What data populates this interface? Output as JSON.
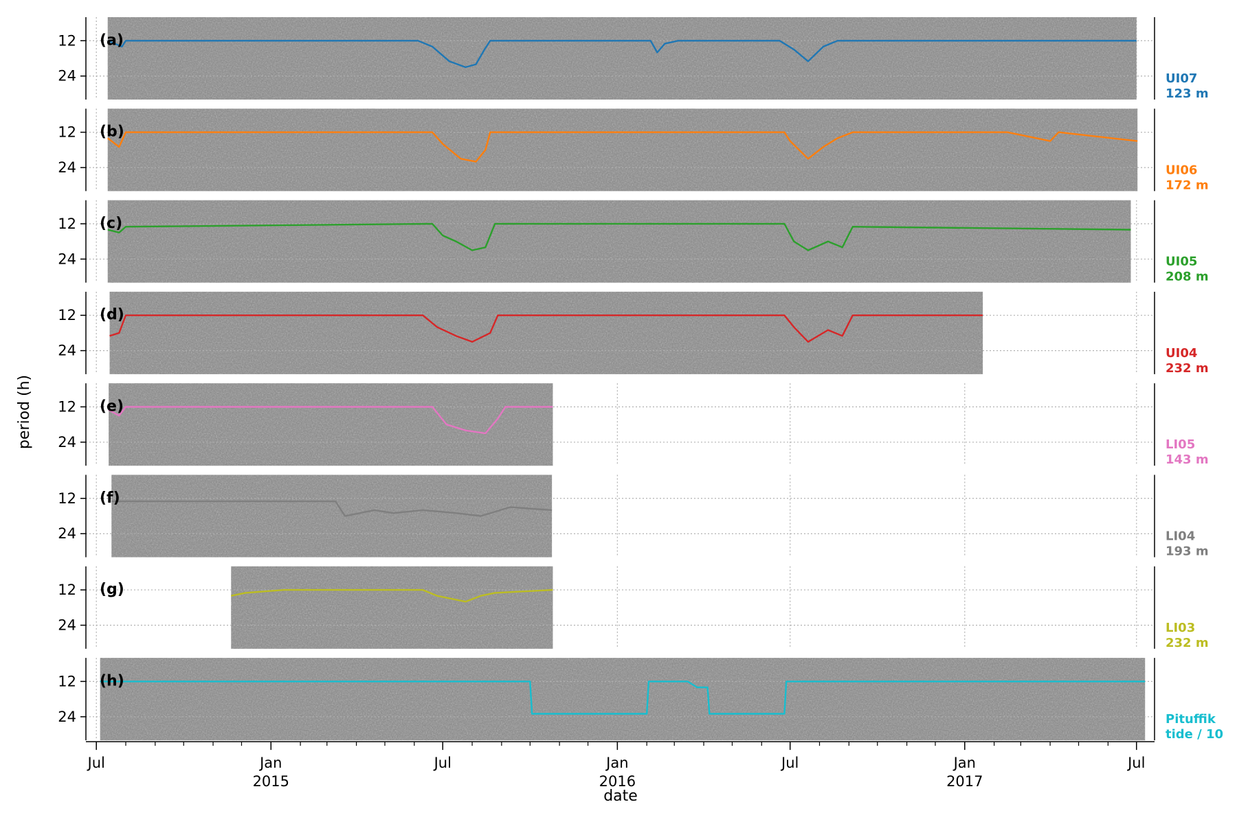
{
  "chart_data": {
    "type": "line",
    "xlabel": "date",
    "ylabel": "period (h)",
    "x_tick_labels": [
      {
        "date": "2014-07-01",
        "text": "Jul"
      },
      {
        "date": "2015-01-01",
        "text": "Jan",
        "year": "2015"
      },
      {
        "date": "2015-07-01",
        "text": "Jul"
      },
      {
        "date": "2016-01-01",
        "text": "Jan",
        "year": "2016"
      },
      {
        "date": "2016-07-01",
        "text": "Jul"
      },
      {
        "date": "2017-01-01",
        "text": "Jan",
        "year": "2017"
      },
      {
        "date": "2017-07-01",
        "text": "Jul"
      }
    ],
    "xlim": [
      "2014-06-20",
      "2017-07-20"
    ],
    "ylim": [
      32,
      4
    ],
    "yticks": [
      12,
      24
    ],
    "grid": true,
    "panels": [
      {
        "panel": "(a)",
        "station": "UI07",
        "depth": "123 m",
        "color": "#1f77b4",
        "start": "2014-07-13",
        "end": "2017-07-01",
        "points": [
          [
            "2014-07-13",
            12
          ],
          [
            "2014-07-28",
            14
          ],
          [
            "2014-08-01",
            12
          ],
          [
            "2015-06-05",
            12
          ],
          [
            "2015-06-20",
            14
          ],
          [
            "2015-07-08",
            19
          ],
          [
            "2015-07-25",
            21
          ],
          [
            "2015-08-05",
            20
          ],
          [
            "2015-08-14",
            15
          ],
          [
            "2015-08-20",
            12
          ],
          [
            "2016-02-05",
            12
          ],
          [
            "2016-02-12",
            16
          ],
          [
            "2016-02-20",
            13
          ],
          [
            "2016-03-05",
            12
          ],
          [
            "2016-06-20",
            12
          ],
          [
            "2016-07-05",
            15
          ],
          [
            "2016-07-20",
            19
          ],
          [
            "2016-08-05",
            14
          ],
          [
            "2016-08-20",
            12
          ],
          [
            "2017-07-01",
            12
          ]
        ]
      },
      {
        "panel": "(b)",
        "station": "UI06",
        "depth": "172 m",
        "color": "#ff7f0e",
        "start": "2014-07-13",
        "end": "2017-07-02",
        "points": [
          [
            "2014-07-13",
            14
          ],
          [
            "2014-07-25",
            17
          ],
          [
            "2014-08-01",
            12
          ],
          [
            "2015-06-20",
            12
          ],
          [
            "2015-07-01",
            16
          ],
          [
            "2015-07-20",
            21
          ],
          [
            "2015-08-05",
            22
          ],
          [
            "2015-08-15",
            18
          ],
          [
            "2015-08-20",
            12
          ],
          [
            "2016-06-25",
            12
          ],
          [
            "2016-07-01",
            15
          ],
          [
            "2016-07-20",
            21
          ],
          [
            "2016-08-05",
            17
          ],
          [
            "2016-08-20",
            14
          ],
          [
            "2016-09-05",
            12
          ],
          [
            "2017-02-15",
            12
          ],
          [
            "2017-04-01",
            15
          ],
          [
            "2017-04-10",
            12
          ],
          [
            "2017-07-02",
            15
          ]
        ]
      },
      {
        "panel": "(c)",
        "station": "UI05",
        "depth": "208 m",
        "color": "#2ca02c",
        "start": "2014-07-13",
        "end": "2017-06-25",
        "points": [
          [
            "2014-07-13",
            14
          ],
          [
            "2014-07-25",
            15
          ],
          [
            "2014-08-01",
            13
          ],
          [
            "2015-06-20",
            12
          ],
          [
            "2015-07-01",
            16
          ],
          [
            "2015-07-15",
            18
          ],
          [
            "2015-08-01",
            21
          ],
          [
            "2015-08-15",
            20
          ],
          [
            "2015-08-25",
            12
          ],
          [
            "2016-06-25",
            12
          ],
          [
            "2016-07-05",
            18
          ],
          [
            "2016-07-20",
            21
          ],
          [
            "2016-08-10",
            18
          ],
          [
            "2016-08-25",
            20
          ],
          [
            "2016-09-05",
            13
          ],
          [
            "2017-06-25",
            14
          ]
        ]
      },
      {
        "panel": "(d)",
        "station": "UI04",
        "depth": "232 m",
        "color": "#d62728",
        "start": "2014-07-15",
        "end": "2017-01-20",
        "points": [
          [
            "2014-07-15",
            19
          ],
          [
            "2014-07-25",
            18
          ],
          [
            "2014-08-01",
            12
          ],
          [
            "2015-06-10",
            12
          ],
          [
            "2015-06-25",
            16
          ],
          [
            "2015-07-15",
            19
          ],
          [
            "2015-08-01",
            21
          ],
          [
            "2015-08-20",
            18
          ],
          [
            "2015-08-28",
            12
          ],
          [
            "2016-06-25",
            12
          ],
          [
            "2016-07-05",
            16
          ],
          [
            "2016-07-20",
            21
          ],
          [
            "2016-08-10",
            17
          ],
          [
            "2016-08-25",
            19
          ],
          [
            "2016-09-05",
            12
          ],
          [
            "2017-01-20",
            12
          ]
        ]
      },
      {
        "panel": "(e)",
        "station": "LI05",
        "depth": "143 m",
        "color": "#e377c2",
        "start": "2014-07-14",
        "end": "2015-10-25",
        "points": [
          [
            "2014-07-14",
            13
          ],
          [
            "2014-07-25",
            15
          ],
          [
            "2014-08-01",
            12
          ],
          [
            "2015-06-20",
            12
          ],
          [
            "2015-07-05",
            18
          ],
          [
            "2015-07-25",
            20
          ],
          [
            "2015-08-15",
            21
          ],
          [
            "2015-08-28",
            16
          ],
          [
            "2015-09-05",
            12
          ],
          [
            "2015-10-25",
            12
          ]
        ]
      },
      {
        "panel": "(f)",
        "station": "LI04",
        "depth": "193 m",
        "color": "#7f7f7f",
        "start": "2014-07-17",
        "end": "2015-10-24",
        "points": [
          [
            "2014-07-17",
            13
          ],
          [
            "2015-02-01",
            13
          ],
          [
            "2015-03-10",
            13
          ],
          [
            "2015-03-20",
            18
          ],
          [
            "2015-04-20",
            16
          ],
          [
            "2015-05-10",
            17
          ],
          [
            "2015-06-10",
            16
          ],
          [
            "2015-07-15",
            17
          ],
          [
            "2015-08-10",
            18
          ],
          [
            "2015-09-10",
            15
          ],
          [
            "2015-10-24",
            16
          ]
        ]
      },
      {
        "panel": "(g)",
        "station": "LI03",
        "depth": "232 m",
        "color": "#bcbd22",
        "start": "2014-11-20",
        "end": "2015-10-25",
        "points": [
          [
            "2014-11-20",
            14
          ],
          [
            "2014-12-05",
            13
          ],
          [
            "2015-01-15",
            12
          ],
          [
            "2015-06-10",
            12
          ],
          [
            "2015-06-25",
            14
          ],
          [
            "2015-07-10",
            15
          ],
          [
            "2015-07-25",
            16
          ],
          [
            "2015-08-10",
            14
          ],
          [
            "2015-08-25",
            13
          ],
          [
            "2015-10-25",
            12
          ]
        ]
      },
      {
        "panel": "(h)",
        "station": "Pituffik",
        "depth": "tide / 10",
        "color": "#17becf",
        "start": "2014-07-05",
        "end": "2017-07-10",
        "points": [
          [
            "2014-07-05",
            12
          ],
          [
            "2015-10-01",
            12
          ],
          [
            "2015-10-03",
            23
          ],
          [
            "2016-02-01",
            23
          ],
          [
            "2016-02-03",
            12
          ],
          [
            "2016-03-15",
            12
          ],
          [
            "2016-03-25",
            14
          ],
          [
            "2016-04-05",
            14
          ],
          [
            "2016-04-07",
            23
          ],
          [
            "2016-06-25",
            23
          ],
          [
            "2016-06-27",
            12
          ],
          [
            "2017-07-10",
            12
          ]
        ]
      }
    ]
  }
}
